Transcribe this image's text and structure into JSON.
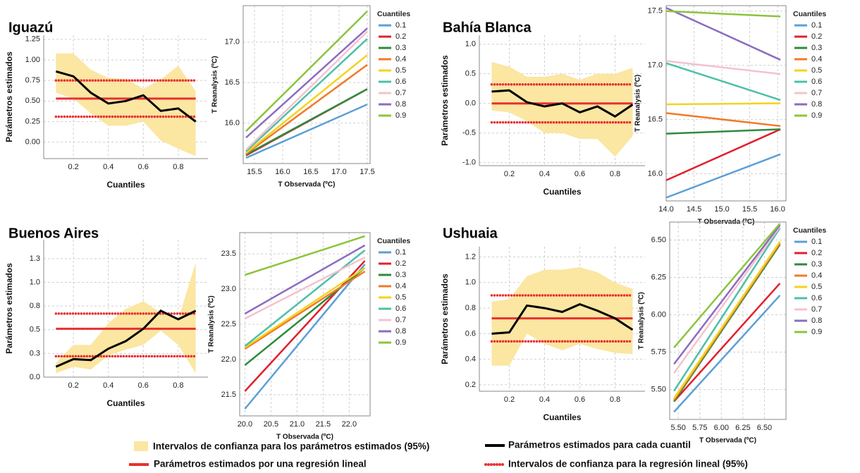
{
  "chart_data": [
    {
      "type": "quantile",
      "title": "Iguazú",
      "xlabel": "Cuantiles",
      "ylabel": "Parámetros estimados",
      "x": [
        0.1,
        0.2,
        0.3,
        0.4,
        0.5,
        0.6,
        0.7,
        0.8,
        0.9
      ],
      "estimates": [
        0.86,
        0.8,
        0.6,
        0.47,
        0.5,
        0.57,
        0.38,
        0.41,
        0.25
      ],
      "ci_upper": [
        1.08,
        1.08,
        0.88,
        0.78,
        0.77,
        0.65,
        0.76,
        0.93,
        0.62
      ],
      "ci_lower": [
        0.6,
        0.53,
        0.35,
        0.2,
        0.2,
        0.25,
        0.02,
        -0.08,
        -0.17
      ],
      "linear": 0.53,
      "linear_ci": [
        0.31,
        0.75
      ],
      "xlim": [
        0.03,
        0.97
      ],
      "xticks": [
        0.2,
        0.4,
        0.6,
        0.8
      ],
      "ylim": [
        -0.2,
        1.3
      ],
      "yticks": [
        {
          "value": 0,
          "label": "0.00"
        },
        0.25,
        {
          "value": 0.5,
          "label": "0.50"
        },
        0.75,
        {
          "value": 1,
          "label": "1.00"
        },
        1.25
      ],
      "grid": true
    },
    {
      "type": "line",
      "xlabel": "T Observada (ºC)",
      "ylabel": "T Reanalysis (ºC)",
      "legend_title": "Cuantiles",
      "x": [
        15.35,
        17.5
      ],
      "series": [
        {
          "name": "0.1",
          "color": "#5b9fd6",
          "values": [
            15.57,
            16.23
          ]
        },
        {
          "name": "0.2",
          "color": "#e0202e",
          "values": [
            15.6,
            16.42
          ]
        },
        {
          "name": "0.3",
          "color": "#2e8b3e",
          "values": [
            15.61,
            16.42
          ]
        },
        {
          "name": "0.4",
          "color": "#f07a28",
          "values": [
            15.62,
            16.72
          ]
        },
        {
          "name": "0.5",
          "color": "#f5d21f",
          "values": [
            15.63,
            16.84
          ]
        },
        {
          "name": "0.6",
          "color": "#4cc0a8",
          "values": [
            15.65,
            17.04
          ]
        },
        {
          "name": "0.7",
          "color": "#f4c2d0",
          "values": [
            15.67,
            17.13
          ]
        },
        {
          "name": "0.8",
          "color": "#8c6cc0",
          "values": [
            15.82,
            17.17
          ]
        },
        {
          "name": "0.9",
          "color": "#8cc43c",
          "values": [
            15.9,
            17.38
          ]
        }
      ],
      "xlim": [
        15.3,
        17.55
      ],
      "xticks": [
        15.5,
        {
          "value": 16,
          "label": "16.0"
        },
        16.5,
        {
          "value": 17,
          "label": "17.0"
        },
        17.5
      ],
      "ylim": [
        15.5,
        17.45
      ],
      "yticks": [
        {
          "value": 16,
          "label": "16.0"
        },
        16.5,
        {
          "value": 17,
          "label": "17.0"
        }
      ],
      "grid": true
    },
    {
      "type": "quantile",
      "title": "Bahía Blanca",
      "xlabel": "Cuantiles",
      "ylabel": "Parámetros estimados",
      "x": [
        0.1,
        0.2,
        0.3,
        0.4,
        0.5,
        0.6,
        0.7,
        0.8,
        0.9
      ],
      "estimates": [
        0.2,
        0.22,
        0.02,
        -0.05,
        0.0,
        -0.15,
        -0.05,
        -0.22,
        -0.02
      ],
      "ci_upper": [
        0.7,
        0.62,
        0.45,
        0.45,
        0.5,
        0.4,
        0.5,
        0.5,
        0.6
      ],
      "ci_lower": [
        -0.12,
        -0.15,
        -0.3,
        -0.5,
        -0.5,
        -0.6,
        -0.6,
        -0.9,
        -0.55
      ],
      "linear": 0.0,
      "linear_ci": [
        -0.32,
        0.32
      ],
      "xlim": [
        0.03,
        0.97
      ],
      "xticks": [
        0.2,
        0.4,
        0.6,
        0.8
      ],
      "ylim": [
        -1.05,
        1.15
      ],
      "yticks": [
        {
          "value": -1,
          "label": "-1.0"
        },
        -0.5,
        {
          "value": 0,
          "label": "0.0"
        },
        0.5,
        {
          "value": 1,
          "label": "1.0"
        }
      ],
      "grid": true
    },
    {
      "type": "line",
      "xlabel": "T Observada (ºC)",
      "ylabel": "T Reanalysis (ºC)",
      "legend_title": "Cuantiles",
      "x": [
        14.0,
        16.05
      ],
      "series": [
        {
          "name": "0.1",
          "color": "#5b9fd6",
          "values": [
            15.78,
            16.18
          ]
        },
        {
          "name": "0.2",
          "color": "#e0202e",
          "values": [
            15.94,
            16.41
          ]
        },
        {
          "name": "0.3",
          "color": "#2e8b3e",
          "values": [
            16.37,
            16.41
          ]
        },
        {
          "name": "0.4",
          "color": "#f07a28",
          "values": [
            16.56,
            16.44
          ]
        },
        {
          "name": "0.5",
          "color": "#f5d21f",
          "values": [
            16.64,
            16.65
          ]
        },
        {
          "name": "0.6",
          "color": "#4cc0a8",
          "values": [
            17.02,
            16.68
          ]
        },
        {
          "name": "0.7",
          "color": "#f4c2d0",
          "values": [
            17.04,
            16.92
          ]
        },
        {
          "name": "0.8",
          "color": "#8c6cc0",
          "values": [
            17.53,
            17.05
          ]
        },
        {
          "name": "0.9",
          "color": "#8cc43c",
          "values": [
            17.5,
            17.45
          ]
        }
      ],
      "xlim": [
        14.0,
        16.15
      ],
      "xticks": [
        {
          "value": 14,
          "label": "14.0"
        },
        14.5,
        {
          "value": 15,
          "label": "15.0"
        },
        15.5,
        {
          "value": 16,
          "label": "16.0"
        }
      ],
      "ylim": [
        15.75,
        17.55
      ],
      "yticks": [
        {
          "value": 16,
          "label": "16.0"
        },
        16.5,
        {
          "value": 17,
          "label": "17.0"
        },
        17.5
      ],
      "grid": true
    },
    {
      "type": "quantile",
      "title": "Buenos Aires",
      "xlabel": "Cuantiles",
      "ylabel": "Parámetros estimados",
      "x": [
        0.1,
        0.2,
        0.3,
        0.4,
        0.5,
        0.6,
        0.7,
        0.8,
        0.9
      ],
      "estimates": [
        0.11,
        0.19,
        0.18,
        0.3,
        0.38,
        0.51,
        0.7,
        0.61,
        0.7
      ],
      "ci_upper": [
        0.15,
        0.34,
        0.34,
        0.57,
        0.72,
        0.8,
        0.68,
        0.61,
        1.21
      ],
      "ci_lower": [
        0.04,
        0.11,
        0.08,
        0.23,
        0.29,
        0.34,
        0.49,
        0.34,
        0.04
      ],
      "linear": 0.51,
      "linear_ci": [
        0.22,
        0.67
      ],
      "xlim": [
        0.03,
        0.97
      ],
      "xticks": [
        0.2,
        0.4,
        0.6,
        0.8
      ],
      "ylim": [
        0,
        1.45
      ],
      "yticks": [
        {
          "value": 0,
          "label": "0.0"
        },
        {
          "value": 0.25,
          "label": "0.3"
        },
        0.5,
        {
          "value": 0.75,
          "label": "0.8"
        },
        {
          "value": 1,
          "label": "1.0"
        },
        {
          "value": 1.25,
          "label": "1.3"
        }
      ],
      "grid": true
    },
    {
      "type": "line",
      "xlabel": "T Observada (ºC)",
      "ylabel": "T Reanalysis (ºC)",
      "legend_title": "Cuantiles",
      "x": [
        20.0,
        22.3
      ],
      "series": [
        {
          "name": "0.1",
          "color": "#5b9fd6",
          "values": [
            21.3,
            23.35
          ]
        },
        {
          "name": "0.2",
          "color": "#e0202e",
          "values": [
            21.55,
            23.4
          ]
        },
        {
          "name": "0.3",
          "color": "#2e8b3e",
          "values": [
            21.92,
            23.3
          ]
        },
        {
          "name": "0.4",
          "color": "#f07a28",
          "values": [
            22.15,
            23.25
          ]
        },
        {
          "name": "0.5",
          "color": "#f5d21f",
          "values": [
            22.17,
            23.3
          ]
        },
        {
          "name": "0.6",
          "color": "#4cc0a8",
          "values": [
            22.19,
            23.55
          ]
        },
        {
          "name": "0.7",
          "color": "#f4c2d0",
          "values": [
            22.58,
            23.45
          ]
        },
        {
          "name": "0.8",
          "color": "#8c6cc0",
          "values": [
            22.65,
            23.62
          ]
        },
        {
          "name": "0.9",
          "color": "#8cc43c",
          "values": [
            23.2,
            23.75
          ]
        }
      ],
      "xlim": [
        19.9,
        22.4
      ],
      "xticks": [
        {
          "value": 20,
          "label": "20.0"
        },
        20.5,
        {
          "value": 21,
          "label": "21.0"
        },
        21.5,
        {
          "value": 22,
          "label": "22.0"
        }
      ],
      "ylim": [
        21.2,
        23.8
      ],
      "yticks": [
        21.5,
        {
          "value": 22,
          "label": "22.0"
        },
        22.5,
        {
          "value": 23,
          "label": "23.0"
        },
        23.5
      ],
      "grid": true
    },
    {
      "type": "quantile",
      "title": "Ushuaia",
      "xlabel": "Cuantiles",
      "ylabel": "Parámetros estimados",
      "x": [
        0.1,
        0.2,
        0.3,
        0.4,
        0.5,
        0.6,
        0.7,
        0.8,
        0.9
      ],
      "estimates": [
        0.6,
        0.61,
        0.82,
        0.8,
        0.77,
        0.83,
        0.78,
        0.72,
        0.63
      ],
      "ci_upper": [
        0.85,
        0.87,
        1.05,
        1.1,
        1.1,
        1.12,
        1.08,
        1.0,
        0.95
      ],
      "ci_lower": [
        0.35,
        0.35,
        0.6,
        0.52,
        0.47,
        0.52,
        0.48,
        0.45,
        0.44
      ],
      "linear": 0.72,
      "linear_ci": [
        0.54,
        0.9
      ],
      "xlim": [
        0.03,
        0.97
      ],
      "xticks": [
        0.2,
        0.4,
        0.6,
        0.8
      ],
      "ylim": [
        0.15,
        1.28
      ],
      "yticks": [
        0.2,
        0.4,
        0.6,
        0.8,
        {
          "value": 1,
          "label": "1.0"
        },
        1.2
      ],
      "grid": true
    },
    {
      "type": "line",
      "xlabel": "T Observada (ºC)",
      "ylabel": "T Reanalysis (ºC)",
      "legend_title": "Cuantiles",
      "x": [
        5.45,
        6.68
      ],
      "series": [
        {
          "name": "0.1",
          "color": "#5b9fd6",
          "values": [
            5.35,
            6.13
          ]
        },
        {
          "name": "0.2",
          "color": "#e0202e",
          "values": [
            5.42,
            6.21
          ]
        },
        {
          "name": "0.3",
          "color": "#2e8b3e",
          "values": [
            5.42,
            6.47
          ]
        },
        {
          "name": "0.4",
          "color": "#f07a28",
          "values": [
            5.43,
            6.48
          ]
        },
        {
          "name": "0.5",
          "color": "#f5d21f",
          "values": [
            5.44,
            6.49
          ]
        },
        {
          "name": "0.6",
          "color": "#4cc0a8",
          "values": [
            5.49,
            6.58
          ]
        },
        {
          "name": "0.7",
          "color": "#f4c2d0",
          "values": [
            5.61,
            6.59
          ]
        },
        {
          "name": "0.8",
          "color": "#8c6cc0",
          "values": [
            5.67,
            6.6
          ]
        },
        {
          "name": "0.9",
          "color": "#8cc43c",
          "values": [
            5.78,
            6.61
          ]
        }
      ],
      "xlim": [
        5.4,
        6.75
      ],
      "xticks": [
        {
          "value": 5.5,
          "label": "5.50"
        },
        5.75,
        {
          "value": 6,
          "label": "6.00"
        },
        6.25,
        {
          "value": 6.5,
          "label": "6.50"
        }
      ],
      "ylim": [
        5.3,
        6.62
      ],
      "yticks": [
        {
          "value": 5.5,
          "label": "5.50"
        },
        5.75,
        {
          "value": 6,
          "label": "6.00"
        },
        6.25,
        {
          "value": 6.5,
          "label": "6.50"
        }
      ],
      "grid": true
    }
  ],
  "legend": {
    "band": "Intervalos de confianza para los parámetros estimados (95%)",
    "estimates": "Parámetros estimados para cada cuantil",
    "linear": "Parámetros estimados por una regresión lineal",
    "linear_ci": "Intervalos de confianza para la regresión lineal (95%)"
  }
}
